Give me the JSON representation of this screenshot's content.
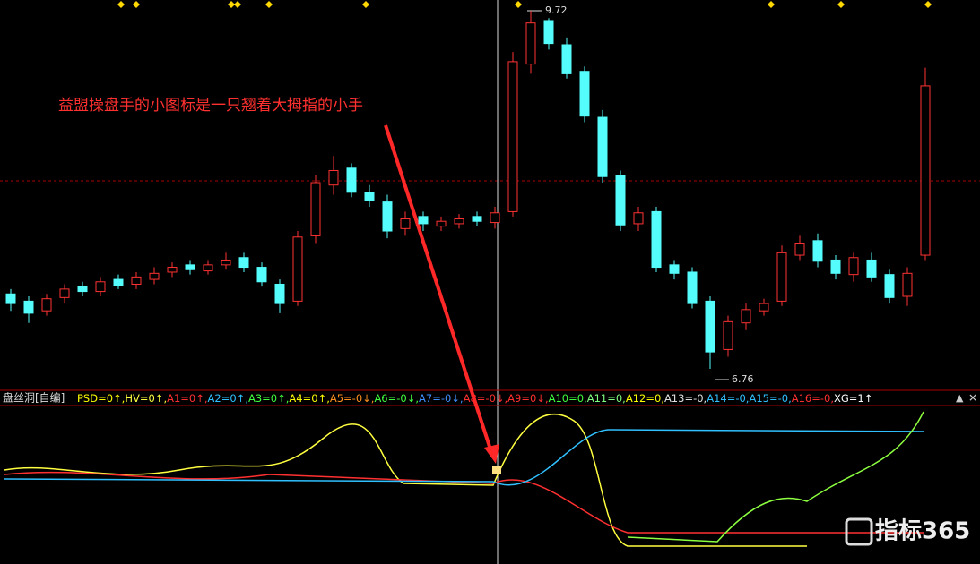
{
  "chart_data": {
    "type": "candlestick",
    "annotation": "益盟操盘手的小图标是一只翘着大拇指的小手",
    "max_label": 9.72,
    "min_label": 6.76,
    "ylim": [
      6.59,
      9.81
    ],
    "up_color": "#ff3232",
    "down_color": "#54fcfc",
    "open": [
      7.38,
      7.32,
      7.24,
      7.35,
      7.44,
      7.4,
      7.5,
      7.46,
      7.5,
      7.56,
      7.62,
      7.57,
      7.62,
      7.68,
      7.6,
      7.46,
      7.32,
      7.86,
      8.28,
      8.42,
      8.22,
      8.14,
      7.92,
      8.02,
      7.94,
      7.96,
      8.02,
      7.97,
      8.06,
      9.28,
      9.64,
      9.44,
      9.22,
      8.84,
      8.36,
      7.96,
      8.06,
      7.62,
      7.56,
      7.32,
      6.92,
      7.14,
      7.24,
      7.32,
      7.7,
      7.82,
      7.66,
      7.54,
      7.66,
      7.54,
      7.36,
      7.7
    ],
    "high": [
      7.42,
      7.36,
      7.38,
      7.46,
      7.48,
      7.52,
      7.54,
      7.56,
      7.6,
      7.64,
      7.66,
      7.66,
      7.72,
      7.72,
      7.64,
      7.5,
      7.9,
      8.36,
      8.52,
      8.46,
      8.28,
      8.2,
      8.06,
      8.06,
      8.02,
      8.04,
      8.06,
      8.1,
      9.38,
      9.72,
      9.66,
      9.5,
      9.26,
      8.9,
      8.4,
      8.1,
      8.1,
      7.66,
      7.6,
      7.36,
      7.2,
      7.3,
      7.34,
      7.78,
      7.86,
      7.88,
      7.7,
      7.72,
      7.72,
      7.58,
      7.6,
      9.25
    ],
    "low": [
      7.24,
      7.14,
      7.2,
      7.3,
      7.36,
      7.36,
      7.42,
      7.42,
      7.46,
      7.52,
      7.54,
      7.54,
      7.58,
      7.56,
      7.44,
      7.22,
      7.28,
      7.8,
      8.2,
      8.18,
      8.1,
      7.84,
      7.86,
      7.9,
      7.9,
      7.92,
      7.94,
      7.92,
      8.02,
      9.2,
      9.4,
      9.16,
      8.8,
      8.3,
      7.9,
      7.9,
      7.56,
      7.5,
      7.26,
      6.76,
      6.86,
      7.08,
      7.2,
      7.28,
      7.66,
      7.6,
      7.5,
      7.48,
      7.48,
      7.3,
      7.28,
      7.66
    ],
    "close": [
      7.3,
      7.22,
      7.34,
      7.42,
      7.4,
      7.48,
      7.45,
      7.52,
      7.55,
      7.6,
      7.58,
      7.62,
      7.66,
      7.6,
      7.48,
      7.3,
      7.85,
      8.3,
      8.4,
      8.22,
      8.15,
      7.9,
      8.0,
      7.96,
      7.98,
      8.0,
      7.98,
      8.05,
      9.3,
      9.62,
      9.45,
      9.2,
      8.85,
      8.35,
      7.95,
      8.05,
      7.6,
      7.55,
      7.3,
      6.9,
      7.15,
      7.25,
      7.3,
      7.72,
      7.8,
      7.65,
      7.55,
      7.68,
      7.52,
      7.35,
      7.55,
      9.1
    ],
    "indicator": {
      "name": "盘丝洞[自编]",
      "items": [
        {
          "text": "PSD=0↑,",
          "color": "#ffff00"
        },
        {
          "text": "HV=0↑,",
          "color": "#ffff40"
        },
        {
          "text": "A1=0↑,",
          "color": "#ff3030"
        },
        {
          "text": "A2=0↑,",
          "color": "#30c0ff"
        },
        {
          "text": "A3=0↑,",
          "color": "#40ff40"
        },
        {
          "text": "A4=0↑,",
          "color": "#ffff00"
        },
        {
          "text": "A5=-0↓,",
          "color": "#ff9020"
        },
        {
          "text": "A6=-0↓,",
          "color": "#40ff40"
        },
        {
          "text": "A7=-0↓,",
          "color": "#4090ff"
        },
        {
          "text": "A8=-0↓,",
          "color": "#ff3030"
        },
        {
          "text": "A9=0↓,",
          "color": "#ff3030"
        },
        {
          "text": "A10=0,",
          "color": "#40ff40"
        },
        {
          "text": "A11=0,",
          "color": "#80ff80"
        },
        {
          "text": "A12=0,",
          "color": "#ffff00"
        },
        {
          "text": "A13=-0,",
          "color": "#e0e0e0"
        },
        {
          "text": "A14=-0,",
          "color": "#30c0ff"
        },
        {
          "text": "A15=-0,",
          "color": "#30c0ff"
        },
        {
          "text": "A16=-0,",
          "color": "#ff3030"
        },
        {
          "text": "XG=1↑",
          "color": "#ffffff"
        }
      ]
    },
    "watermark": "指标365"
  }
}
